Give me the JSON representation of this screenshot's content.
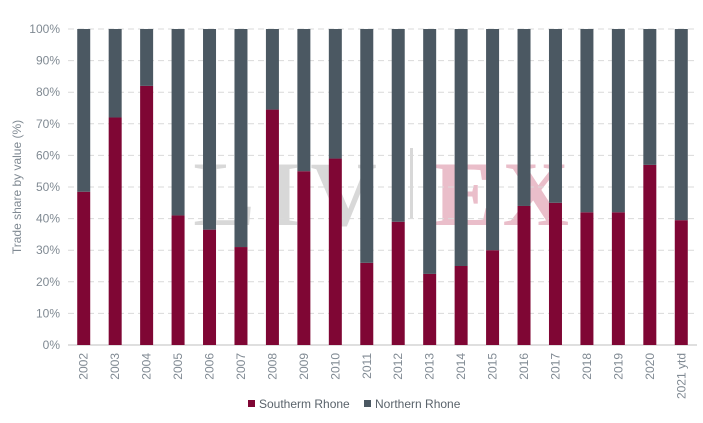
{
  "chart_data": {
    "type": "bar",
    "stacked": true,
    "categories": [
      "2002",
      "2003",
      "2004",
      "2005",
      "2006",
      "2007",
      "2008",
      "2009",
      "2010",
      "2011",
      "2012",
      "2013",
      "2014",
      "2015",
      "2016",
      "2017",
      "2018",
      "2019",
      "2020",
      "2021 ytd"
    ],
    "series": [
      {
        "name": "Southerm Rhone",
        "color": "#7f0634",
        "values": [
          48.5,
          72,
          82,
          41,
          36.5,
          31,
          74.5,
          55,
          59,
          26,
          39,
          22.5,
          25,
          30,
          44,
          45,
          42,
          42,
          57,
          39.5
        ]
      },
      {
        "name": "Northern Rhone",
        "color": "#4b5862",
        "values": [
          51.5,
          28,
          18,
          59,
          63.5,
          69,
          25.5,
          45,
          41,
          74,
          61,
          77.5,
          75,
          70,
          56,
          55,
          58,
          58,
          43,
          60.5
        ]
      }
    ],
    "ylabel": "Trade share by value (%)",
    "xlabel": "",
    "ylim": [
      0,
      100
    ],
    "yticks": [
      "0%",
      "10%",
      "20%",
      "30%",
      "40%",
      "50%",
      "60%",
      "70%",
      "80%",
      "90%",
      "100%"
    ],
    "grid": true,
    "legend_position": "bottom"
  },
  "watermark": {
    "left": "LIV",
    "right": "EX"
  }
}
